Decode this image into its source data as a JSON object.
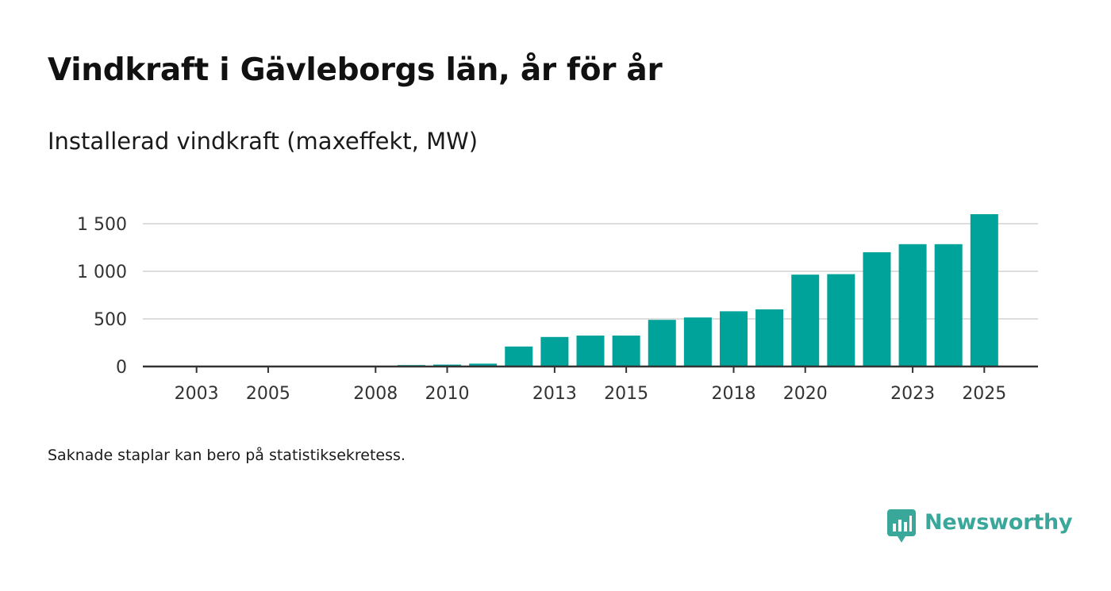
{
  "title": "Vindkraft i Gävleborgs län, år för år",
  "subtitle": "Installerad vindkraft (maxeffekt, MW)",
  "footnote": "Saknade staplar kan bero på statistiksekretess.",
  "logo": {
    "text": "Newsworthy",
    "icon": "newsworthy-logo-icon",
    "color": "#3aa79b"
  },
  "colors": {
    "bar": "#00a39a",
    "grid": "#dddddd",
    "axis": "#333333"
  },
  "chart_data": {
    "type": "bar",
    "title": "Vindkraft i Gävleborgs län, år för år",
    "ylabel": "Installerad vindkraft (maxeffekt, MW)",
    "xlabel": "",
    "categories": [
      2003,
      2004,
      2005,
      2006,
      2007,
      2008,
      2009,
      2010,
      2011,
      2012,
      2013,
      2014,
      2015,
      2016,
      2017,
      2018,
      2019,
      2020,
      2021,
      2022,
      2023,
      2024,
      2025
    ],
    "values": [
      0,
      0,
      0,
      0,
      0,
      0,
      15,
      20,
      30,
      210,
      310,
      325,
      325,
      490,
      515,
      580,
      600,
      965,
      970,
      1200,
      1285,
      1285,
      1600
    ],
    "xlim": [
      2001.5,
      2026.5
    ],
    "ylim": [
      0,
      1700
    ],
    "y_ticks": [
      0,
      500,
      1000,
      1500
    ],
    "y_tick_labels": [
      "0",
      "500",
      "1 000",
      "1 500"
    ],
    "x_ticks": [
      2003,
      2005,
      2008,
      2010,
      2013,
      2015,
      2018,
      2020,
      2023,
      2025
    ],
    "x_tick_labels": [
      "2003",
      "2005",
      "2008",
      "2010",
      "2013",
      "2015",
      "2018",
      "2020",
      "2023",
      "2025"
    ],
    "grid": true,
    "legend": "none"
  }
}
